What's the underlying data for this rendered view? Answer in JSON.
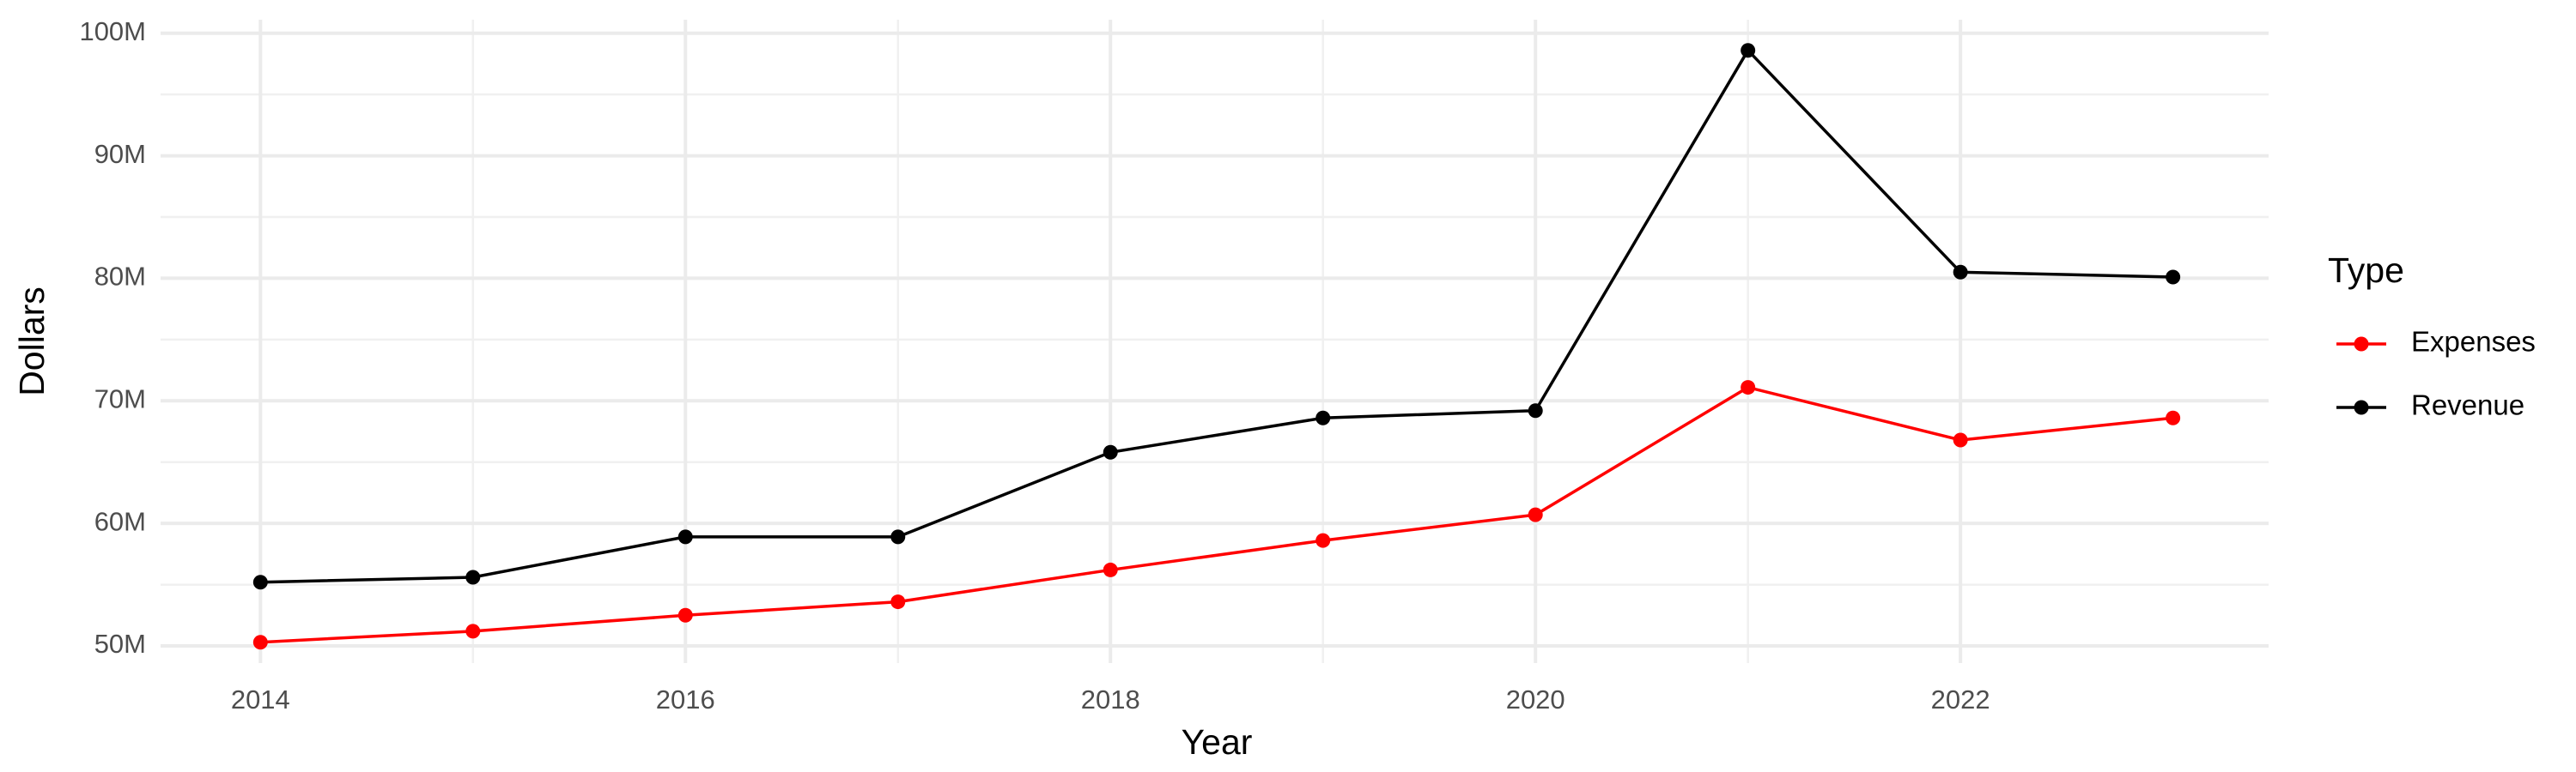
{
  "chart_data": {
    "type": "line",
    "x_label": "Year",
    "y_label": "Dollars",
    "x": [
      2014,
      2015,
      2016,
      2017,
      2018,
      2019,
      2020,
      2021,
      2022,
      2023
    ],
    "series": [
      {
        "name": "Expenses",
        "color": "#ff0000",
        "values": [
          50300000,
          51200000,
          52500000,
          53600000,
          56200000,
          58600000,
          60700000,
          71100000,
          66800000,
          68600000
        ]
      },
      {
        "name": "Revenue",
        "color": "#000000",
        "values": [
          55200000,
          55600000,
          58900000,
          58900000,
          65800000,
          68600000,
          69200000,
          98600000,
          80500000,
          80100000
        ]
      }
    ],
    "xlim": [
      2013.53,
      2023.45
    ],
    "xticks": [
      2014,
      2016,
      2018,
      2020,
      2022
    ],
    "ylim": [
      48600000,
      101100000
    ],
    "yticks": [
      {
        "value": 50000000,
        "label": "50M"
      },
      {
        "value": 60000000,
        "label": "60M"
      },
      {
        "value": 70000000,
        "label": "70M"
      },
      {
        "value": 80000000,
        "label": "80M"
      },
      {
        "value": 90000000,
        "label": "90M"
      },
      {
        "value": 100000000,
        "label": "100M"
      }
    ],
    "grid": true,
    "minor_grid": true,
    "legend_title": "Type",
    "legend_position": "right"
  }
}
